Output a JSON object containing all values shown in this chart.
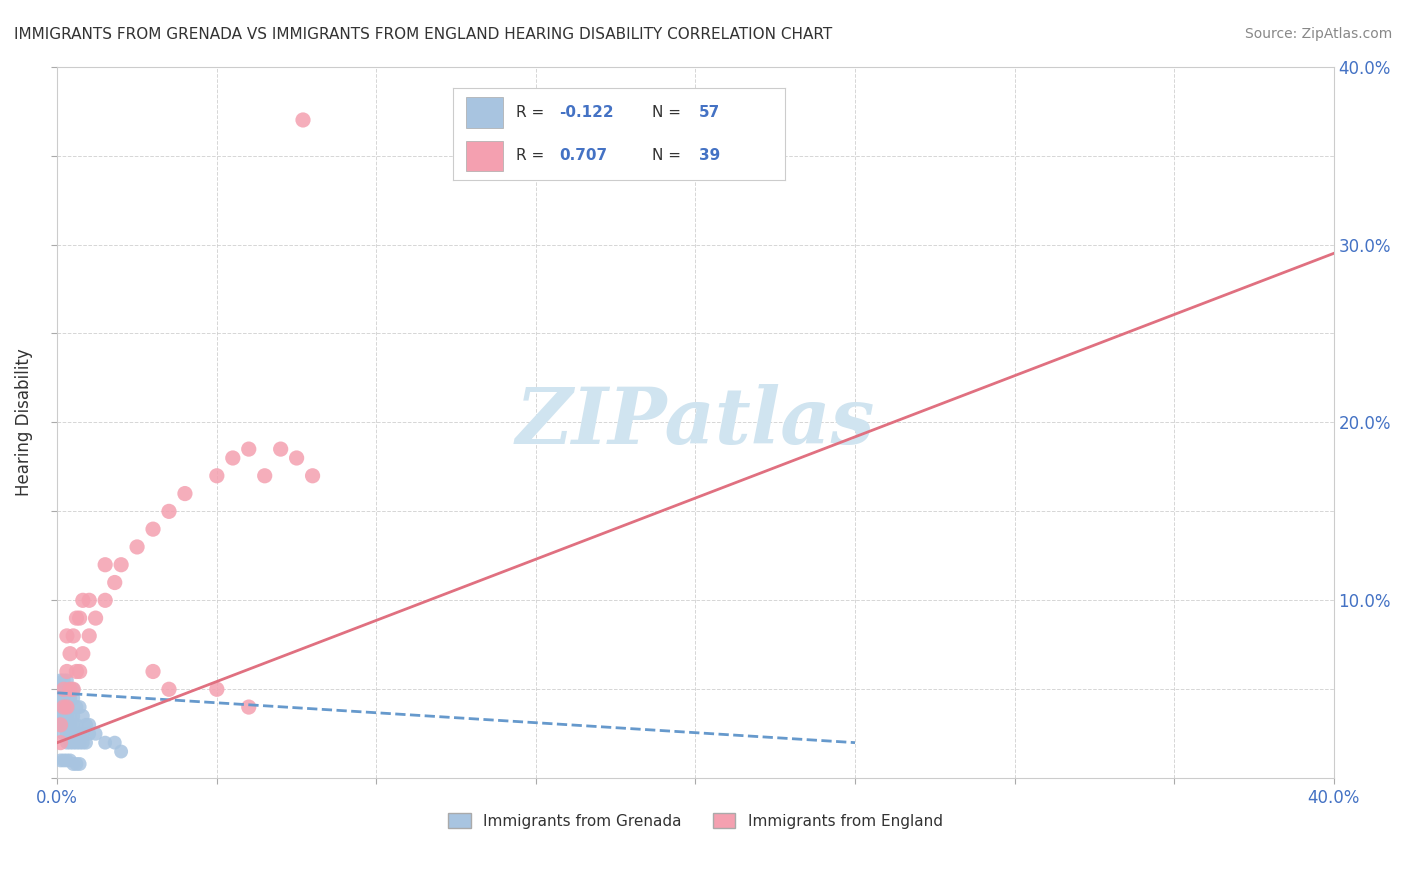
{
  "title": "IMMIGRANTS FROM GRENADA VS IMMIGRANTS FROM ENGLAND HEARING DISABILITY CORRELATION CHART",
  "source": "Source: ZipAtlas.com",
  "ylabel": "Hearing Disability",
  "xlabel": "",
  "xlim": [
    0.0,
    0.4
  ],
  "ylim": [
    0.0,
    0.4
  ],
  "xticks": [
    0.0,
    0.05,
    0.1,
    0.15,
    0.2,
    0.25,
    0.3,
    0.35,
    0.4
  ],
  "yticks": [
    0.0,
    0.05,
    0.1,
    0.15,
    0.2,
    0.25,
    0.3,
    0.35,
    0.4
  ],
  "grenada_color": "#a8c4e0",
  "england_color": "#f4a0b0",
  "grenada_line_color": "#6699cc",
  "england_line_color": "#e07080",
  "grenada_R": -0.122,
  "grenada_N": 57,
  "england_R": 0.707,
  "england_N": 39,
  "label_color": "#4472c4",
  "text_color": "#333333",
  "background_color": "#ffffff",
  "grid_color": "#cccccc",
  "watermark_color": "#d0e4f0",
  "grenada_x": [
    0.001,
    0.001,
    0.001,
    0.001,
    0.002,
    0.002,
    0.002,
    0.002,
    0.002,
    0.003,
    0.003,
    0.003,
    0.003,
    0.003,
    0.004,
    0.004,
    0.004,
    0.004,
    0.005,
    0.005,
    0.005,
    0.005,
    0.006,
    0.006,
    0.006,
    0.007,
    0.007,
    0.008,
    0.008,
    0.009,
    0.001,
    0.001,
    0.002,
    0.002,
    0.003,
    0.003,
    0.004,
    0.004,
    0.005,
    0.005,
    0.006,
    0.007,
    0.008,
    0.009,
    0.01,
    0.01,
    0.012,
    0.015,
    0.018,
    0.02,
    0.001,
    0.002,
    0.003,
    0.004,
    0.005,
    0.006,
    0.007
  ],
  "grenada_y": [
    0.03,
    0.035,
    0.04,
    0.045,
    0.025,
    0.03,
    0.035,
    0.04,
    0.045,
    0.02,
    0.025,
    0.03,
    0.035,
    0.04,
    0.02,
    0.025,
    0.03,
    0.035,
    0.02,
    0.025,
    0.03,
    0.035,
    0.02,
    0.025,
    0.03,
    0.02,
    0.025,
    0.02,
    0.025,
    0.02,
    0.05,
    0.055,
    0.05,
    0.055,
    0.05,
    0.055,
    0.045,
    0.05,
    0.045,
    0.05,
    0.04,
    0.04,
    0.035,
    0.03,
    0.025,
    0.03,
    0.025,
    0.02,
    0.02,
    0.015,
    0.01,
    0.01,
    0.01,
    0.01,
    0.008,
    0.008,
    0.008
  ],
  "england_x": [
    0.001,
    0.001,
    0.002,
    0.002,
    0.003,
    0.003,
    0.003,
    0.004,
    0.004,
    0.005,
    0.005,
    0.006,
    0.006,
    0.007,
    0.007,
    0.008,
    0.008,
    0.01,
    0.01,
    0.012,
    0.015,
    0.015,
    0.018,
    0.02,
    0.025,
    0.03,
    0.035,
    0.04,
    0.05,
    0.055,
    0.06,
    0.065,
    0.07,
    0.075,
    0.08,
    0.03,
    0.035,
    0.05,
    0.06
  ],
  "england_y": [
    0.02,
    0.03,
    0.04,
    0.05,
    0.04,
    0.06,
    0.08,
    0.05,
    0.07,
    0.05,
    0.08,
    0.06,
    0.09,
    0.06,
    0.09,
    0.07,
    0.1,
    0.08,
    0.1,
    0.09,
    0.1,
    0.12,
    0.11,
    0.12,
    0.13,
    0.14,
    0.15,
    0.16,
    0.17,
    0.18,
    0.185,
    0.17,
    0.185,
    0.18,
    0.17,
    0.06,
    0.05,
    0.05,
    0.04
  ],
  "england_outlier_x": [
    0.077
  ],
  "england_outlier_y": [
    0.37
  ],
  "grenada_line_x0": 0.0,
  "grenada_line_y0": 0.048,
  "grenada_line_x1": 0.25,
  "grenada_line_y1": 0.02,
  "england_line_x0": 0.0,
  "england_line_y0": 0.02,
  "england_line_x1": 0.4,
  "england_line_y1": 0.295
}
